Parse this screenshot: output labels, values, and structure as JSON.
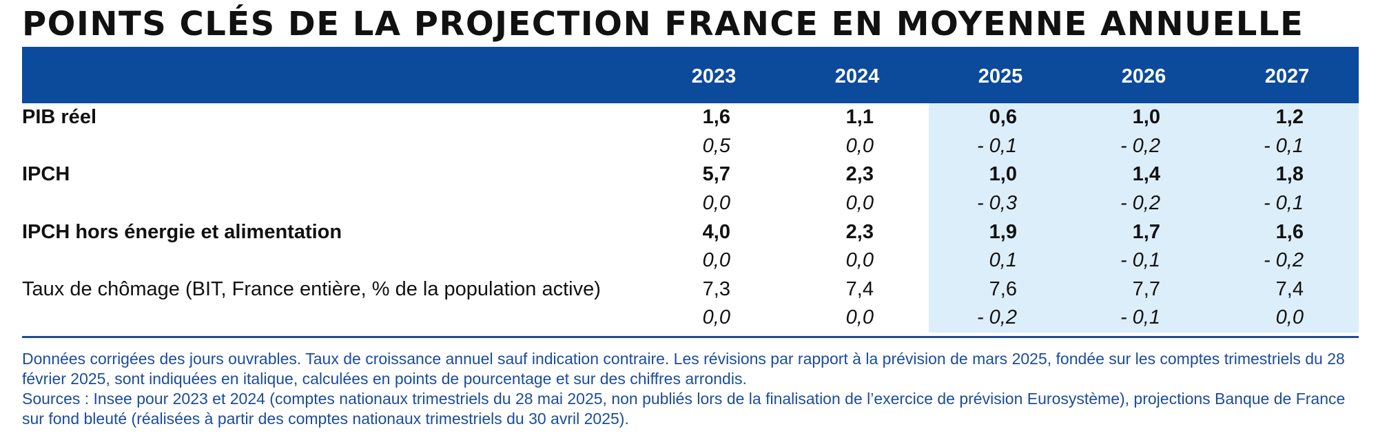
{
  "title": "POINTS CLÉS DE LA PROJECTION FRANCE EN MOYENNE ANNUELLE",
  "colors": {
    "header_bg": "#0c4a9b",
    "projection_bg": "#dceefa",
    "notes_text": "#1b4c9c"
  },
  "table": {
    "header_label": "",
    "years": [
      "2023",
      "2024",
      "2025",
      "2026",
      "2027"
    ],
    "projection_years": [
      "2025",
      "2026",
      "2027"
    ],
    "rows": [
      {
        "label": "PIB réel",
        "values": [
          "1,6",
          "1,1",
          "0,6",
          "1,0",
          "1,2"
        ],
        "revisions": [
          "0,5",
          "0,0",
          "- 0,1",
          "- 0,2",
          "- 0,1"
        ]
      },
      {
        "label": "IPCH",
        "values": [
          "5,7",
          "2,3",
          "1,0",
          "1,4",
          "1,8"
        ],
        "revisions": [
          "0,0",
          "0,0",
          "- 0,3",
          "- 0,2",
          "- 0,1"
        ]
      },
      {
        "label": "IPCH hors énergie et alimentation",
        "values": [
          "4,0",
          "2,3",
          "1,9",
          "1,7",
          "1,6"
        ],
        "revisions": [
          "0,0",
          "0,0",
          "0,1",
          "- 0,1",
          "- 0,2"
        ]
      },
      {
        "label": "Taux de chômage (BIT, France entière, % de la population active)",
        "values": [
          "7,3",
          "7,4",
          "7,6",
          "7,7",
          "7,4"
        ],
        "revisions": [
          "0,0",
          "0,0",
          "- 0,2",
          "- 0,1",
          "0,0"
        ]
      }
    ]
  },
  "notes": {
    "line1": "Données corrigées des jours ouvrables. Taux de croissance annuel sauf indication contraire. Les révisions par rapport à la prévision de mars 2025, fondée sur les comptes trimestriels du 28 février 2025, sont indiquées en italique, calculées en points de pourcentage et sur des chiffres arrondis.",
    "line2": "Sources : Insee pour 2023 et 2024 (comptes nationaux trimestriels du 28 mai 2025, non publiés lors de la finalisation de l’exercice de prévision Eurosystème), projections Banque de France sur fond bleuté (réalisées à partir des comptes nationaux trimestriels du 30 avril 2025)."
  }
}
